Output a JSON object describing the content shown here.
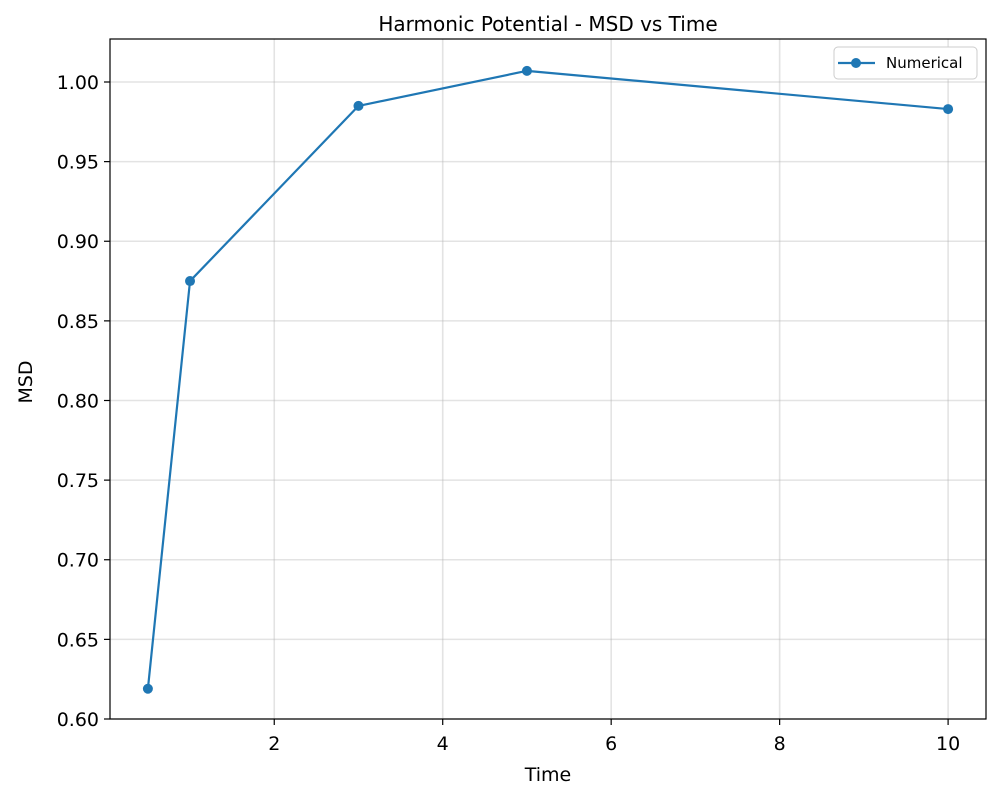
{
  "chart_data": {
    "type": "line",
    "title": "Harmonic Potential - MSD vs Time",
    "xlabel": "Time",
    "ylabel": "MSD",
    "xlim": [
      0.05,
      10.45
    ],
    "ylim": [
      0.6,
      1.027
    ],
    "x_ticks": [
      2,
      4,
      6,
      8,
      10
    ],
    "y_ticks": [
      0.6,
      0.65,
      0.7,
      0.75,
      0.8,
      0.85,
      0.9,
      0.95,
      1.0
    ],
    "y_tick_labels": [
      "0.60",
      "0.65",
      "0.70",
      "0.75",
      "0.80",
      "0.85",
      "0.90",
      "0.95",
      "1.00"
    ],
    "x_tick_labels": [
      "2",
      "4",
      "6",
      "8",
      "10"
    ],
    "grid": true,
    "legend_position": "top-right",
    "series": [
      {
        "name": "Numerical",
        "color": "#1f77b4",
        "marker": "circle",
        "x": [
          0.5,
          1,
          3,
          5,
          10
        ],
        "y": [
          0.619,
          0.875,
          0.985,
          1.007,
          0.983
        ]
      }
    ]
  }
}
